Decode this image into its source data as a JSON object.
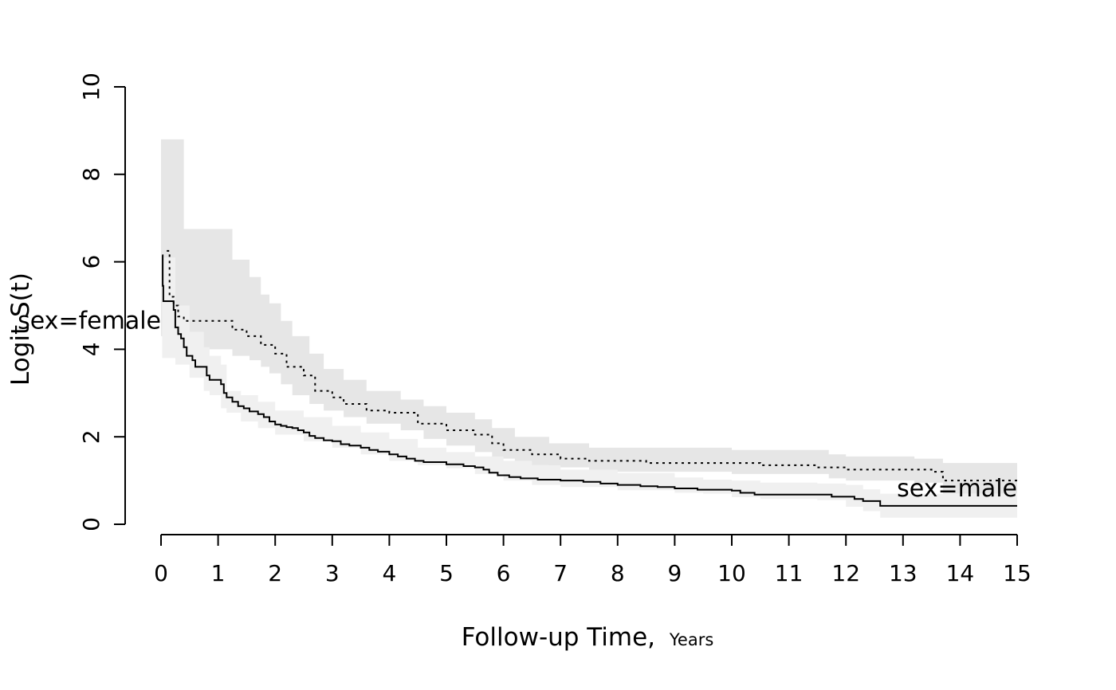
{
  "chart_data": {
    "type": "line",
    "xlabel": "Follow-up Time,",
    "xlabel_unit": "Years",
    "ylabel": "Logit S(t)",
    "xlim": [
      0,
      15
    ],
    "ylim": [
      0,
      10
    ],
    "x_ticks": [
      0,
      1,
      2,
      3,
      4,
      5,
      6,
      7,
      8,
      9,
      10,
      11,
      12,
      13,
      14,
      15
    ],
    "y_ticks": [
      0,
      2,
      4,
      6,
      8,
      10
    ],
    "grid": false,
    "legend": "none",
    "colors": {
      "line": "#000000",
      "band_female": "#e6e6e6",
      "band_male": "#f0f0f0"
    },
    "series": [
      {
        "name": "sex=female",
        "label_position": "left",
        "line_style": "dotted",
        "steps": [
          [
            0.1,
            6.25
          ],
          [
            0.15,
            5.2
          ],
          [
            0.22,
            5.0
          ],
          [
            0.3,
            4.75
          ],
          [
            0.4,
            4.65
          ],
          [
            1.25,
            4.45
          ],
          [
            1.5,
            4.3
          ],
          [
            1.75,
            4.1
          ],
          [
            2.0,
            3.9
          ],
          [
            2.2,
            3.6
          ],
          [
            2.5,
            3.4
          ],
          [
            2.7,
            3.05
          ],
          [
            3.0,
            2.9
          ],
          [
            3.2,
            2.75
          ],
          [
            3.6,
            2.6
          ],
          [
            4.0,
            2.55
          ],
          [
            4.5,
            2.3
          ],
          [
            5.0,
            2.15
          ],
          [
            5.5,
            2.05
          ],
          [
            5.8,
            1.85
          ],
          [
            6.0,
            1.7
          ],
          [
            6.5,
            1.6
          ],
          [
            7.0,
            1.5
          ],
          [
            7.5,
            1.45
          ],
          [
            8.5,
            1.4
          ],
          [
            10.0,
            1.4
          ],
          [
            10.5,
            1.35
          ],
          [
            11.5,
            1.3
          ],
          [
            12.0,
            1.25
          ],
          [
            13.5,
            1.2
          ],
          [
            13.7,
            1.0
          ],
          [
            15.0,
            1.0
          ]
        ],
        "band": [
          [
            0.0,
            4.3,
            8.8
          ],
          [
            0.4,
            4.0,
            6.75
          ],
          [
            1.25,
            3.85,
            6.05
          ],
          [
            1.55,
            3.75,
            5.65
          ],
          [
            1.75,
            3.6,
            5.25
          ],
          [
            1.9,
            3.45,
            5.05
          ],
          [
            2.1,
            3.2,
            4.65
          ],
          [
            2.3,
            2.95,
            4.3
          ],
          [
            2.6,
            2.75,
            3.9
          ],
          [
            2.85,
            2.6,
            3.55
          ],
          [
            3.2,
            2.45,
            3.3
          ],
          [
            3.6,
            2.3,
            3.05
          ],
          [
            4.2,
            2.15,
            2.85
          ],
          [
            4.6,
            1.95,
            2.7
          ],
          [
            5.0,
            1.8,
            2.55
          ],
          [
            5.5,
            1.65,
            2.4
          ],
          [
            5.8,
            1.5,
            2.2
          ],
          [
            6.2,
            1.35,
            2.0
          ],
          [
            6.8,
            1.3,
            1.85
          ],
          [
            7.5,
            1.2,
            1.75
          ],
          [
            10.0,
            1.15,
            1.7
          ],
          [
            11.7,
            1.05,
            1.6
          ],
          [
            12.0,
            1.0,
            1.55
          ],
          [
            13.2,
            0.95,
            1.5
          ],
          [
            13.7,
            0.7,
            1.4
          ],
          [
            15.0,
            0.7,
            1.4
          ]
        ]
      },
      {
        "name": "sex=male",
        "label_position": "right",
        "line_style": "solid",
        "steps": [
          [
            0.02,
            6.15
          ],
          [
            0.03,
            5.45
          ],
          [
            0.04,
            5.1
          ],
          [
            0.22,
            4.9
          ],
          [
            0.25,
            4.5
          ],
          [
            0.3,
            4.35
          ],
          [
            0.35,
            4.25
          ],
          [
            0.4,
            4.05
          ],
          [
            0.45,
            3.85
          ],
          [
            0.55,
            3.75
          ],
          [
            0.6,
            3.6
          ],
          [
            0.8,
            3.4
          ],
          [
            0.85,
            3.3
          ],
          [
            1.05,
            3.2
          ],
          [
            1.1,
            3.0
          ],
          [
            1.15,
            2.9
          ],
          [
            1.25,
            2.8
          ],
          [
            1.35,
            2.7
          ],
          [
            1.45,
            2.65
          ],
          [
            1.55,
            2.58
          ],
          [
            1.7,
            2.52
          ],
          [
            1.8,
            2.45
          ],
          [
            1.9,
            2.35
          ],
          [
            2.0,
            2.28
          ],
          [
            2.1,
            2.25
          ],
          [
            2.2,
            2.22
          ],
          [
            2.3,
            2.2
          ],
          [
            2.4,
            2.15
          ],
          [
            2.5,
            2.1
          ],
          [
            2.6,
            2.02
          ],
          [
            2.7,
            1.97
          ],
          [
            2.85,
            1.92
          ],
          [
            3.0,
            1.9
          ],
          [
            3.15,
            1.83
          ],
          [
            3.3,
            1.8
          ],
          [
            3.5,
            1.75
          ],
          [
            3.65,
            1.7
          ],
          [
            3.8,
            1.66
          ],
          [
            4.0,
            1.6
          ],
          [
            4.15,
            1.55
          ],
          [
            4.3,
            1.5
          ],
          [
            4.45,
            1.45
          ],
          [
            4.6,
            1.42
          ],
          [
            5.0,
            1.37
          ],
          [
            5.3,
            1.33
          ],
          [
            5.5,
            1.3
          ],
          [
            5.65,
            1.25
          ],
          [
            5.75,
            1.18
          ],
          [
            5.9,
            1.12
          ],
          [
            6.1,
            1.08
          ],
          [
            6.3,
            1.05
          ],
          [
            6.6,
            1.02
          ],
          [
            7.0,
            1.0
          ],
          [
            7.4,
            0.97
          ],
          [
            7.7,
            0.93
          ],
          [
            8.0,
            0.9
          ],
          [
            8.4,
            0.87
          ],
          [
            8.7,
            0.85
          ],
          [
            9.0,
            0.82
          ],
          [
            9.4,
            0.79
          ],
          [
            10.0,
            0.77
          ],
          [
            10.15,
            0.72
          ],
          [
            10.4,
            0.68
          ],
          [
            11.75,
            0.63
          ],
          [
            12.15,
            0.58
          ],
          [
            12.3,
            0.53
          ],
          [
            12.6,
            0.42
          ],
          [
            15.0,
            0.42
          ]
        ],
        "band": [
          [
            0.02,
            3.8,
            6.1
          ],
          [
            0.25,
            3.65,
            5.0
          ],
          [
            0.5,
            3.35,
            4.4
          ],
          [
            0.75,
            3.05,
            4.05
          ],
          [
            0.85,
            2.95,
            3.85
          ],
          [
            1.05,
            2.65,
            3.65
          ],
          [
            1.15,
            2.55,
            3.05
          ],
          [
            1.4,
            2.35,
            2.95
          ],
          [
            1.7,
            2.2,
            2.8
          ],
          [
            2.0,
            2.05,
            2.6
          ],
          [
            2.5,
            1.9,
            2.45
          ],
          [
            3.0,
            1.75,
            2.25
          ],
          [
            3.5,
            1.6,
            2.1
          ],
          [
            4.0,
            1.45,
            1.95
          ],
          [
            4.5,
            1.35,
            1.75
          ],
          [
            5.0,
            1.28,
            1.65
          ],
          [
            5.5,
            1.15,
            1.55
          ],
          [
            6.0,
            1.0,
            1.45
          ],
          [
            6.5,
            0.9,
            1.35
          ],
          [
            7.0,
            0.85,
            1.25
          ],
          [
            8.0,
            0.78,
            1.17
          ],
          [
            9.0,
            0.72,
            1.07
          ],
          [
            9.5,
            0.7,
            1.02
          ],
          [
            10.0,
            0.62,
            1.0
          ],
          [
            10.5,
            0.58,
            0.95
          ],
          [
            11.5,
            0.55,
            0.93
          ],
          [
            12.0,
            0.4,
            0.9
          ],
          [
            12.3,
            0.3,
            0.8
          ],
          [
            12.6,
            0.15,
            0.7
          ],
          [
            15.0,
            0.15,
            0.7
          ]
        ]
      }
    ]
  }
}
